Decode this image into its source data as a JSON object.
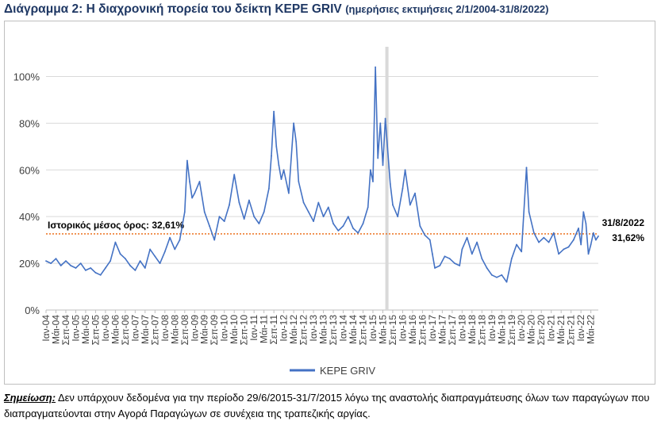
{
  "title": {
    "main": "Διάγραμμα 2: Η διαχρονική πορεία του δείκτη ΚΕΡΕ GRIV",
    "sub": "(ημερήσιες εκτιμήσεις 2/1/2004-31/8/2022)"
  },
  "note": {
    "label": "Σημείωση:",
    "text": " Δεν υπάρχουν δεδομένα για την περίοδο 29/6/2015-31/7/2015 λόγω της αναστολής διαπραγμάτευσης όλων των παραγώγων που διαπραγματεύονται στην Αγορά Παραγώγων σε συνέχεια της τραπεζικής αργίας."
  },
  "colors": {
    "series": "#4472c4",
    "mean_line": "#ed7d31",
    "gap_band": "#d9d9d9",
    "grid": "#d9d9d9",
    "title": "#1f3864"
  },
  "chart_data": {
    "type": "line",
    "title": "",
    "xlabel": "",
    "ylabel": "",
    "ylim": [
      0,
      110
    ],
    "yticks": [
      "0%",
      "20%",
      "40%",
      "60%",
      "80%",
      "100%"
    ],
    "ytick_values": [
      0,
      20,
      40,
      60,
      80,
      100
    ],
    "grid": "horizontal",
    "legend_position": "bottom",
    "x_domain": [
      "2004-01",
      "2022-08"
    ],
    "xtick_labels": [
      "Ιαν-04",
      "Μάι-04",
      "Σεπ-04",
      "Ιαν-05",
      "Μάι-05",
      "Σεπ-05",
      "Ιαν-06",
      "Μάι-06",
      "Σεπ-06",
      "Ιαν-07",
      "Μάι-07",
      "Σεπ-07",
      "Ιαν-08",
      "Μάι-08",
      "Σεπ-08",
      "Ιαν-09",
      "Μάι-09",
      "Σεπ-09",
      "Ιαν-10",
      "Μάι-10",
      "Σεπ-10",
      "Ιαν-11",
      "Μάι-11",
      "Σεπ-11",
      "Ιαν-12",
      "Μάι-12",
      "Σεπ-12",
      "Ιαν-13",
      "Μάι-13",
      "Σεπ-13",
      "Ιαν-14",
      "Μάι-14",
      "Σεπ-14",
      "Ιαν-15",
      "Μάι-15",
      "Σεπ-15",
      "Ιαν-16",
      "Μάι-16",
      "Σεπ-16",
      "Ιαν-17",
      "Μάι-17",
      "Σεπ-17",
      "Ιαν-18",
      "Μάι-18",
      "Σεπ-18",
      "Ιαν-19",
      "Μάι-19",
      "Σεπ-19",
      "Ιαν-20",
      "Μάι-20",
      "Σεπ-20",
      "Ιαν-21",
      "Μάι-21",
      "Σεπ-21",
      "Ιαν-22",
      "Μάι-22"
    ],
    "series": [
      {
        "name": "ΚΕΡΕ GRIV",
        "points": [
          [
            "2004-01",
            21
          ],
          [
            "2004-03",
            20
          ],
          [
            "2004-05",
            22
          ],
          [
            "2004-07",
            19
          ],
          [
            "2004-09",
            21
          ],
          [
            "2004-11",
            19
          ],
          [
            "2005-01",
            18
          ],
          [
            "2005-03",
            20
          ],
          [
            "2005-05",
            17
          ],
          [
            "2005-07",
            18
          ],
          [
            "2005-09",
            16
          ],
          [
            "2005-11",
            15
          ],
          [
            "2006-01",
            18
          ],
          [
            "2006-03",
            21
          ],
          [
            "2006-05",
            29
          ],
          [
            "2006-07",
            24
          ],
          [
            "2006-09",
            22
          ],
          [
            "2006-11",
            19
          ],
          [
            "2007-01",
            17
          ],
          [
            "2007-03",
            21
          ],
          [
            "2007-05",
            18
          ],
          [
            "2007-07",
            26
          ],
          [
            "2007-09",
            23
          ],
          [
            "2007-11",
            20
          ],
          [
            "2008-01",
            25
          ],
          [
            "2008-03",
            31
          ],
          [
            "2008-05",
            26
          ],
          [
            "2008-07",
            30
          ],
          [
            "2008-09",
            42
          ],
          [
            "2008-10",
            64
          ],
          [
            "2008-11",
            55
          ],
          [
            "2008-12",
            48
          ],
          [
            "2009-01",
            50
          ],
          [
            "2009-03",
            55
          ],
          [
            "2009-05",
            42
          ],
          [
            "2009-07",
            36
          ],
          [
            "2009-09",
            30
          ],
          [
            "2009-11",
            40
          ],
          [
            "2010-01",
            38
          ],
          [
            "2010-03",
            45
          ],
          [
            "2010-05",
            58
          ],
          [
            "2010-07",
            46
          ],
          [
            "2010-09",
            39
          ],
          [
            "2010-11",
            47
          ],
          [
            "2011-01",
            40
          ],
          [
            "2011-03",
            37
          ],
          [
            "2011-05",
            42
          ],
          [
            "2011-07",
            52
          ],
          [
            "2011-08",
            66
          ],
          [
            "2011-09",
            85
          ],
          [
            "2011-10",
            70
          ],
          [
            "2011-11",
            62
          ],
          [
            "2011-12",
            56
          ],
          [
            "2012-01",
            60
          ],
          [
            "2012-03",
            50
          ],
          [
            "2012-05",
            80
          ],
          [
            "2012-06",
            72
          ],
          [
            "2012-07",
            55
          ],
          [
            "2012-09",
            46
          ],
          [
            "2012-11",
            42
          ],
          [
            "2013-01",
            38
          ],
          [
            "2013-03",
            46
          ],
          [
            "2013-05",
            40
          ],
          [
            "2013-07",
            44
          ],
          [
            "2013-09",
            37
          ],
          [
            "2013-11",
            34
          ],
          [
            "2014-01",
            36
          ],
          [
            "2014-03",
            40
          ],
          [
            "2014-05",
            35
          ],
          [
            "2014-07",
            33
          ],
          [
            "2014-09",
            37
          ],
          [
            "2014-11",
            44
          ],
          [
            "2014-12",
            60
          ],
          [
            "2015-01",
            55
          ],
          [
            "2015-02",
            104
          ],
          [
            "2015-03",
            65
          ],
          [
            "2015-04",
            80
          ],
          [
            "2015-05",
            62
          ],
          [
            "2015-06",
            82
          ],
          [
            "2015-08",
            54
          ],
          [
            "2015-09",
            45
          ],
          [
            "2015-11",
            40
          ],
          [
            "2016-01",
            52
          ],
          [
            "2016-02",
            60
          ],
          [
            "2016-04",
            45
          ],
          [
            "2016-06",
            50
          ],
          [
            "2016-08",
            36
          ],
          [
            "2016-10",
            32
          ],
          [
            "2016-12",
            30
          ],
          [
            "2017-01",
            24
          ],
          [
            "2017-02",
            18
          ],
          [
            "2017-04",
            19
          ],
          [
            "2017-06",
            23
          ],
          [
            "2017-08",
            22
          ],
          [
            "2017-10",
            20
          ],
          [
            "2017-12",
            19
          ],
          [
            "2018-01",
            26
          ],
          [
            "2018-03",
            31
          ],
          [
            "2018-05",
            24
          ],
          [
            "2018-07",
            29
          ],
          [
            "2018-09",
            22
          ],
          [
            "2018-11",
            18
          ],
          [
            "2019-01",
            15
          ],
          [
            "2019-03",
            14
          ],
          [
            "2019-05",
            15
          ],
          [
            "2019-07",
            12
          ],
          [
            "2019-09",
            22
          ],
          [
            "2019-11",
            28
          ],
          [
            "2020-01",
            25
          ],
          [
            "2020-03",
            61
          ],
          [
            "2020-04",
            42
          ],
          [
            "2020-06",
            33
          ],
          [
            "2020-08",
            29
          ],
          [
            "2020-10",
            31
          ],
          [
            "2020-12",
            29
          ],
          [
            "2021-02",
            33
          ],
          [
            "2021-04",
            24
          ],
          [
            "2021-06",
            26
          ],
          [
            "2021-08",
            27
          ],
          [
            "2021-10",
            30
          ],
          [
            "2021-12",
            35
          ],
          [
            "2022-01",
            28
          ],
          [
            "2022-02",
            42
          ],
          [
            "2022-03",
            37
          ],
          [
            "2022-04",
            24
          ],
          [
            "2022-05",
            28
          ],
          [
            "2022-06",
            33
          ],
          [
            "2022-07",
            30
          ],
          [
            "2022-08",
            31.62
          ]
        ]
      }
    ],
    "gap_period": [
      "2015-06",
      "2015-07"
    ],
    "reference_line": {
      "value": 32.61,
      "label": "Ιστορικός μέσος όρος: 32,61%"
    },
    "end_annotation": {
      "date_label": "31/8/2022",
      "value_label": "31,62%"
    }
  }
}
